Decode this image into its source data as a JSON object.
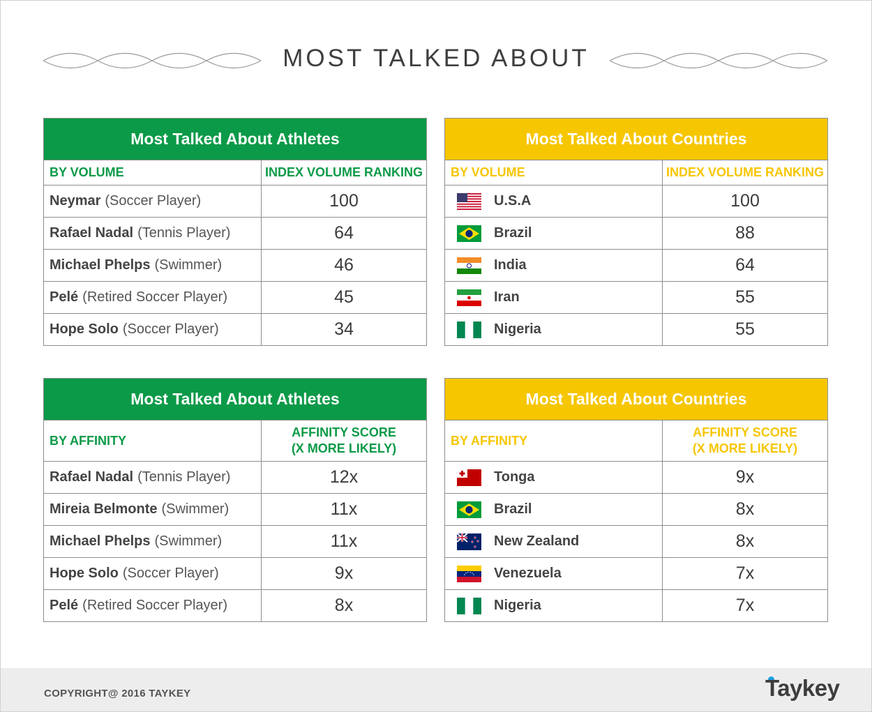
{
  "page": {
    "title": "MOST TALKED ABOUT"
  },
  "colors": {
    "green": "#0b9a48",
    "yellow": "#f6c600",
    "footer_bg": "#ededed",
    "logo_dot": "#1da1e2"
  },
  "tables": {
    "athletes_volume": {
      "title": "Most Talked About Athletes",
      "col1": "BY VOLUME",
      "col2": "INDEX VOLUME RANKING",
      "rows": [
        {
          "name": "Neymar",
          "role": "(Soccer Player)",
          "value": "100"
        },
        {
          "name": "Rafael Nadal",
          "role": "(Tennis Player)",
          "value": "64"
        },
        {
          "name": "Michael Phelps",
          "role": "(Swimmer)",
          "value": "46"
        },
        {
          "name": "Pelé",
          "role": "(Retired Soccer Player)",
          "value": "45"
        },
        {
          "name": "Hope Solo",
          "role": "(Soccer Player)",
          "value": "34"
        }
      ]
    },
    "countries_volume": {
      "title": "Most Talked About Countries",
      "col1": "BY VOLUME",
      "col2": "INDEX VOLUME RANKING",
      "rows": [
        {
          "country": "U.S.A",
          "flag": "usa-flag-icon",
          "value": "100"
        },
        {
          "country": "Brazil",
          "flag": "brazil-flag-icon",
          "value": "88"
        },
        {
          "country": "India",
          "flag": "india-flag-icon",
          "value": "64"
        },
        {
          "country": "Iran",
          "flag": "iran-flag-icon",
          "value": "55"
        },
        {
          "country": "Nigeria",
          "flag": "nigeria-flag-icon",
          "value": "55"
        }
      ]
    },
    "athletes_affinity": {
      "title": "Most Talked About Athletes",
      "col1": "BY AFFINITY",
      "col2_line1": "AFFINITY SCORE",
      "col2_line2": "(X MORE LIKELY)",
      "rows": [
        {
          "name": "Rafael Nadal",
          "role": "(Tennis Player)",
          "value": "12x"
        },
        {
          "name": "Mireia Belmonte",
          "role": "(Swimmer)",
          "value": "11x"
        },
        {
          "name": "Michael Phelps",
          "role": "(Swimmer)",
          "value": "11x"
        },
        {
          "name": "Hope Solo",
          "role": "(Soccer Player)",
          "value": "9x"
        },
        {
          "name": "Pelé",
          "role": "(Retired Soccer Player)",
          "value": "8x"
        }
      ]
    },
    "countries_affinity": {
      "title": "Most Talked About Countries",
      "col1": "BY AFFINITY",
      "col2_line1": "AFFINITY SCORE",
      "col2_line2": "(X MORE LIKELY)",
      "rows": [
        {
          "country": "Tonga",
          "flag": "tonga-flag-icon",
          "value": "9x"
        },
        {
          "country": "Brazil",
          "flag": "brazil-flag-icon",
          "value": "8x"
        },
        {
          "country": "New Zealand",
          "flag": "new-zealand-flag-icon",
          "value": "8x"
        },
        {
          "country": "Venezuela",
          "flag": "venezuela-flag-icon",
          "value": "7x"
        },
        {
          "country": "Nigeria",
          "flag": "nigeria-flag-icon",
          "value": "7x"
        }
      ]
    }
  },
  "footer": {
    "copyright": "COPYRIGHT@ 2016 TAYKEY",
    "logo": "Taykey"
  }
}
